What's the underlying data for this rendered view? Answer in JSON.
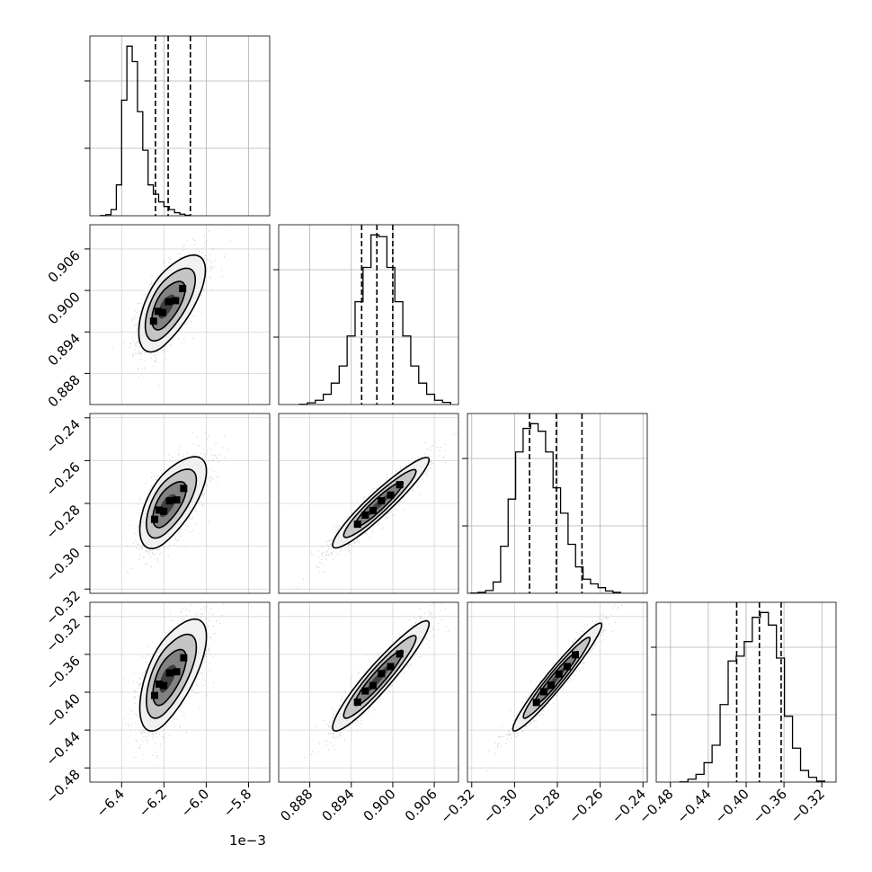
{
  "chart_data": {
    "type": "corner",
    "variables": [
      {
        "id": "p0",
        "range": [
          -6.55,
          -5.7
        ],
        "ticks": [
          -6.4,
          -6.2,
          -6.0,
          -5.8
        ],
        "tick_labels": [
          "−6.4",
          "−6.2",
          "−6.0",
          "−5.8"
        ],
        "offset_label": "1e−3"
      },
      {
        "id": "p1",
        "range": [
          0.8835,
          0.9095
        ],
        "ticks": [
          0.888,
          0.894,
          0.9,
          0.906
        ],
        "tick_labels": [
          "0.888",
          "0.894",
          "0.900",
          "0.906"
        ]
      },
      {
        "id": "p2",
        "range": [
          -0.322,
          -0.238
        ],
        "ticks": [
          -0.32,
          -0.3,
          -0.28,
          -0.26,
          -0.24
        ],
        "tick_labels": [
          "−0.32",
          "−0.30",
          "−0.28",
          "−0.26",
          "−0.24"
        ]
      },
      {
        "id": "p3",
        "range": [
          -0.495,
          -0.305
        ],
        "ticks": [
          -0.48,
          -0.44,
          -0.4,
          -0.36,
          -0.32
        ],
        "tick_labels": [
          "−0.48",
          "−0.44",
          "−0.40",
          "−0.36",
          "−0.32"
        ]
      }
    ],
    "histograms": [
      {
        "var": 0,
        "bin_edges_start": -6.5,
        "bin_width": 0.025,
        "counts": [
          0.2,
          1.5,
          8,
          40,
          150,
          220,
          200,
          135,
          85,
          40,
          28,
          18,
          12,
          8,
          4,
          2,
          0.5
        ],
        "quantiles": [
          -6.24,
          -6.18,
          -6.075
        ]
      },
      {
        "var": 1,
        "bin_edges_start": 0.8865,
        "bin_width": 0.00115,
        "counts": [
          0.3,
          2,
          5,
          12,
          25,
          45,
          80,
          120,
          160,
          198,
          196,
          160,
          120,
          80,
          45,
          25,
          12,
          5,
          2.5
        ],
        "quantiles": [
          0.8955,
          0.8977,
          0.9
        ]
      },
      {
        "var": 2,
        "bin_edges_start": -0.3205,
        "bin_width": 0.0035,
        "counts": [
          0.2,
          1,
          3,
          12,
          50,
          100,
          150,
          175,
          180,
          172,
          150,
          112,
          85,
          52,
          28,
          15,
          10,
          6,
          2.5,
          1
        ],
        "quantiles": [
          -0.293,
          -0.2805,
          -0.2685
        ]
      },
      {
        "var": 3,
        "bin_edges_start": -0.47,
        "bin_width": 0.0085,
        "counts": [
          0.2,
          3,
          8,
          20,
          38,
          80,
          125,
          130,
          145,
          170,
          175,
          162,
          128,
          68,
          35,
          12,
          5,
          1
        ],
        "quantiles": [
          -0.41,
          -0.386,
          -0.363
        ]
      }
    ],
    "pairs": [
      {
        "x": 1,
        "y": 0,
        "mean": [
          -6.195,
          0.8975
        ],
        "sd": [
          0.062,
          0.0032
        ],
        "corr": 0.55,
        "skew": 0.9
      },
      {
        "x": 2,
        "y": 0,
        "mean": [
          -6.19,
          -0.2815
        ],
        "sd": [
          0.062,
          0.0098
        ],
        "corr": 0.55,
        "skew": 0.9
      },
      {
        "x": 2,
        "y": 1,
        "mean": [
          0.8977,
          -0.2812
        ],
        "sd": [
          0.0032,
          0.0098
        ],
        "corr": 0.93,
        "skew": 0.3
      },
      {
        "x": 3,
        "y": 0,
        "mean": [
          -6.19,
          -0.387
        ],
        "sd": [
          0.062,
          0.027
        ],
        "corr": 0.55,
        "skew": 0.9
      },
      {
        "x": 3,
        "y": 1,
        "mean": [
          0.8977,
          -0.387
        ],
        "sd": [
          0.0032,
          0.027
        ],
        "corr": 0.93,
        "skew": 0.3
      },
      {
        "x": 3,
        "y": 2,
        "mean": [
          -0.2812,
          -0.387
        ],
        "sd": [
          0.0098,
          0.027
        ],
        "corr": 0.96,
        "skew": 0.2
      }
    ],
    "grid": true,
    "contour_levels": [
      0.5,
      1.0,
      1.5
    ]
  }
}
